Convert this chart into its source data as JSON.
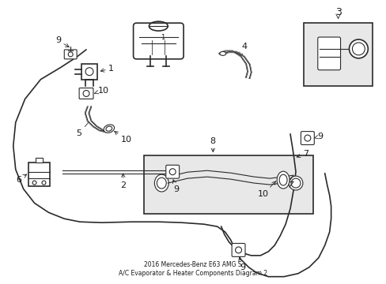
{
  "background_color": "#ffffff",
  "line_color": "#2a2a2a",
  "text_color": "#1a1a1a",
  "inset_bg": "#e8e8e8",
  "title": "2016 Mercedes-Benz E63 AMG S\nA/C Evaporator & Heater Components Diagram 2"
}
